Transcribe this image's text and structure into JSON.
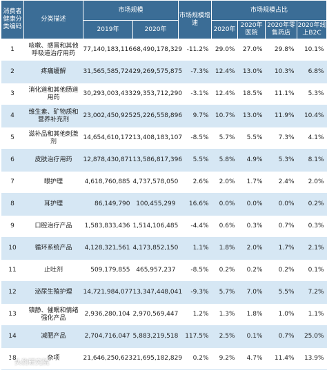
{
  "headers": {
    "code": "消费者健康分类编码",
    "desc": "分类描述",
    "market_size": "市场规模",
    "growth": "市场规模增速",
    "share": "市场规模占比",
    "y2019": "2019年",
    "y2020": "2020年",
    "s2020": "2020年",
    "s_hospital": "2020年医院",
    "s_retail": "2020年零售药店",
    "s_online": "2020年线上B2C"
  },
  "rows": [
    {
      "code": "1",
      "desc": "咳嗽、感冒和其他呼吸道治疗用药",
      "v2019": "77,140,183,116",
      "v2020": "68,490,178,329",
      "growth": "-11.2%",
      "s2020": "29.0%",
      "hospital": "27.0%",
      "retail": "29.8%",
      "online": "10.1%"
    },
    {
      "code": "2",
      "desc": "疼痛缓解",
      "v2019": "31,565,585,724",
      "v2020": "29,269,575,875",
      "growth": "-7.3%",
      "s2020": "12.4%",
      "hospital": "13.0%",
      "retail": "10.3%",
      "online": "6.8%"
    },
    {
      "code": "3",
      "desc": "消化道和其他肠道用药",
      "v2019": "30,293,003,433",
      "v2020": "29,353,712,290",
      "growth": "-3.1%",
      "s2020": "12.4%",
      "hospital": "18.5%",
      "retail": "11.1%",
      "online": "5.3%"
    },
    {
      "code": "4",
      "desc": "维生素、矿物质和营养补充剂",
      "v2019": "23,002,450,925",
      "v2020": "25,226,558,896",
      "growth": "9.7%",
      "s2020": "10.7%",
      "hospital": "13.0%",
      "retail": "11.9%",
      "online": "10.4%"
    },
    {
      "code": "5",
      "desc": "滋补品和其他刺激剂",
      "v2019": "14,654,610,172",
      "v2020": "13,408,183,107",
      "growth": "-8.5%",
      "s2020": "5.7%",
      "hospital": "5.5%",
      "retail": "7.3%",
      "online": "4.1%"
    },
    {
      "code": "6",
      "desc": "皮肤治疗用药",
      "v2019": "12,878,430,871",
      "v2020": "13,586,817,396",
      "growth": "5.5%",
      "s2020": "5.8%",
      "hospital": "4.9%",
      "retail": "5.3%",
      "online": "8.1%"
    },
    {
      "code": "7",
      "desc": "眼护理",
      "v2019": "4,618,760,885",
      "v2020": "4,737,578,050",
      "growth": "2.6%",
      "s2020": "2.0%",
      "hospital": "1.7%",
      "retail": "2.4%",
      "online": "2.0%"
    },
    {
      "code": "8",
      "desc": "耳护理",
      "v2019": "86,149,790",
      "v2020": "100,455,299",
      "growth": "16.6%",
      "s2020": "0.0%",
      "hospital": "0.0%",
      "retail": "0.0%",
      "online": "0.2%"
    },
    {
      "code": "9",
      "desc": "口腔治疗产品",
      "v2019": "1,583,833,436",
      "v2020": "1,514,106,485",
      "growth": "-4.4%",
      "s2020": "0.6%",
      "hospital": "0.3%",
      "retail": "0.7%",
      "online": "0.3%"
    },
    {
      "code": "10",
      "desc": "循环系统产品",
      "v2019": "4,128,321,561",
      "v2020": "4,173,852,150",
      "growth": "1.1%",
      "s2020": "1.8%",
      "hospital": "2.0%",
      "retail": "1.7%",
      "online": "2.1%"
    },
    {
      "code": "11",
      "desc": "止吐剂",
      "v2019": "509,179,855",
      "v2020": "465,957,237",
      "growth": "-8.5%",
      "s2020": "0.2%",
      "hospital": "0.2%",
      "retail": "0.2%",
      "online": "0.1%"
    },
    {
      "code": "12",
      "desc": "泌尿生殖护理",
      "v2019": "14,721,984,077",
      "v2020": "13,347,448,041",
      "growth": "-9.3%",
      "s2020": "5.7%",
      "hospital": "7.0%",
      "retail": "5.5%",
      "online": "7.2%"
    },
    {
      "code": "13",
      "desc": "镇静、催眠和情绪强化产品",
      "v2019": "2,936,280,104",
      "v2020": "2,970,569,447",
      "growth": "1.2%",
      "s2020": "1.3%",
      "hospital": "1.8%",
      "retail": "1.0%",
      "online": "1.1%"
    },
    {
      "code": "14",
      "desc": "减肥产品",
      "v2019": "2,704,716,047",
      "v2020": "5,883,219,518",
      "growth": "117.5%",
      "s2020": "2.5%",
      "hospital": "0.1%",
      "retail": "0.7%",
      "online": "25.0%"
    },
    {
      "code": "18",
      "desc": "杂项",
      "v2019": "21,646,250,623",
      "v2020": "21,695,182,829",
      "growth": "0.2%",
      "s2020": "9.2%",
      "hospital": "4.7%",
      "retail": "11.4%",
      "online": "13.9%"
    }
  ],
  "watermark": "头豹研究院"
}
